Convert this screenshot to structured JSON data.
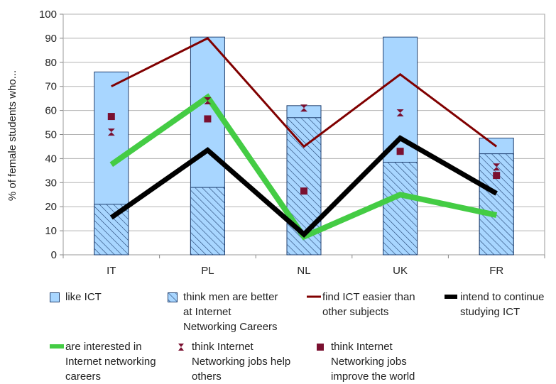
{
  "chart_data": {
    "type": "bar",
    "categories": [
      "IT",
      "PL",
      "NL",
      "UK",
      "FR"
    ],
    "ylabel": "% of female students who...",
    "ylim": [
      0,
      100
    ],
    "yticks": [
      0,
      10,
      20,
      30,
      40,
      50,
      60,
      70,
      80,
      90,
      100
    ],
    "grid": true,
    "legend_position": "bottom",
    "series": [
      {
        "name": "like ICT",
        "kind": "bar",
        "color": "#a8d6ff",
        "values": [
          76,
          90.5,
          62,
          90.5,
          48.5
        ]
      },
      {
        "name": "think men are better at Internet Networking Careers",
        "kind": "hatched-bar",
        "color": "#a8d6ff",
        "values": [
          21,
          28,
          57,
          38.5,
          42
        ]
      },
      {
        "name": "find ICT easier than other subjects",
        "kind": "line",
        "color": "#800000",
        "values": [
          70,
          90,
          45,
          75,
          45
        ]
      },
      {
        "name": "intend to continue studying ICT",
        "kind": "line",
        "color": "#000000",
        "values": [
          15.5,
          43.5,
          8.5,
          48.5,
          25.5
        ]
      },
      {
        "name": "are interested in Internet networking careers",
        "kind": "line",
        "color": "#44cc44",
        "values": [
          37.5,
          65.5,
          7.5,
          25,
          16.5
        ]
      },
      {
        "name": "think Internet Networking jobs help others",
        "kind": "marker",
        "marker": "hourglass",
        "color": "#7a1030",
        "values": [
          51,
          64,
          61,
          59,
          36.5
        ]
      },
      {
        "name": "think Internet Networking jobs improve the world",
        "kind": "marker",
        "marker": "square",
        "color": "#7a1030",
        "values": [
          57.5,
          56.5,
          26.5,
          43,
          33
        ]
      }
    ]
  },
  "legend": {
    "items": [
      {
        "label": "like ICT"
      },
      {
        "label": "think men are better\nat Internet\nNetworking Careers"
      },
      {
        "label": "find ICT easier than\nother subjects"
      },
      {
        "label": "intend to continue\nstudying ICT"
      },
      {
        "label": "are interested in\nInternet networking\ncareers"
      },
      {
        "label": "think Internet\nNetworking jobs help\nothers"
      },
      {
        "label": "think Internet\nNetworking jobs\nimprove the world"
      }
    ]
  }
}
